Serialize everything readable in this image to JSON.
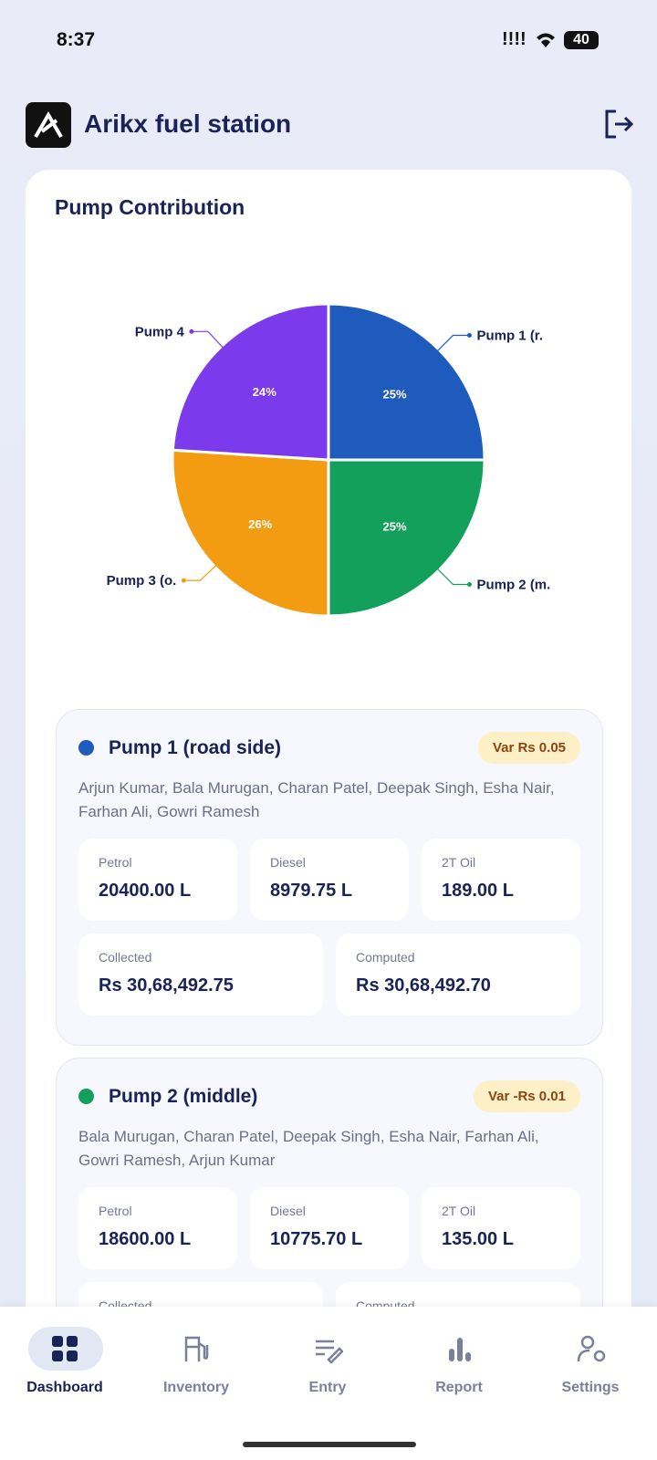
{
  "status_bar": {
    "time": "8:37",
    "signal": "!!!!",
    "battery": "40"
  },
  "header": {
    "title": "Arikx fuel station"
  },
  "chart_data": {
    "type": "pie",
    "title": "Pump Contribution",
    "categories": [
      "Pump 1 (r.",
      "Pump 2 (m.",
      "Pump 3 (o.",
      "Pump 4"
    ],
    "values": [
      25,
      25,
      26,
      24
    ],
    "value_labels": [
      "25%",
      "25%",
      "26%",
      "24%"
    ],
    "colors": [
      "#1e5bbd",
      "#12a05a",
      "#f39c12",
      "#7c3aed"
    ]
  },
  "pumps": [
    {
      "name": "Pump 1 (road side)",
      "color": "#1e5bbd",
      "variance": "Var Rs 0.05",
      "operators": "Arjun Kumar, Bala Murugan, Charan Patel, Deepak Singh, Esha Nair, Farhan Ali, Gowri Ramesh",
      "fuels": [
        {
          "label": "Petrol",
          "value": "20400.00 L"
        },
        {
          "label": "Diesel",
          "value": "8979.75 L"
        },
        {
          "label": "2T Oil",
          "value": "189.00 L"
        }
      ],
      "totals": [
        {
          "label": "Collected",
          "value": "Rs 30,68,492.75"
        },
        {
          "label": "Computed",
          "value": "Rs 30,68,492.70"
        }
      ]
    },
    {
      "name": "Pump 2 (middle)",
      "color": "#12a05a",
      "variance": "Var -Rs 0.01",
      "operators": "Bala Murugan, Charan Patel, Deepak Singh, Esha Nair, Farhan Ali, Gowri Ramesh, Arjun Kumar",
      "fuels": [
        {
          "label": "Petrol",
          "value": "18600.00 L"
        },
        {
          "label": "Diesel",
          "value": "10775.70 L"
        },
        {
          "label": "2T Oil",
          "value": "135.00 L"
        }
      ],
      "totals": [
        {
          "label": "Collected"
        },
        {
          "label": "Computed"
        }
      ]
    }
  ],
  "nav": [
    "Dashboard",
    "Inventory",
    "Entry",
    "Report",
    "Settings"
  ]
}
